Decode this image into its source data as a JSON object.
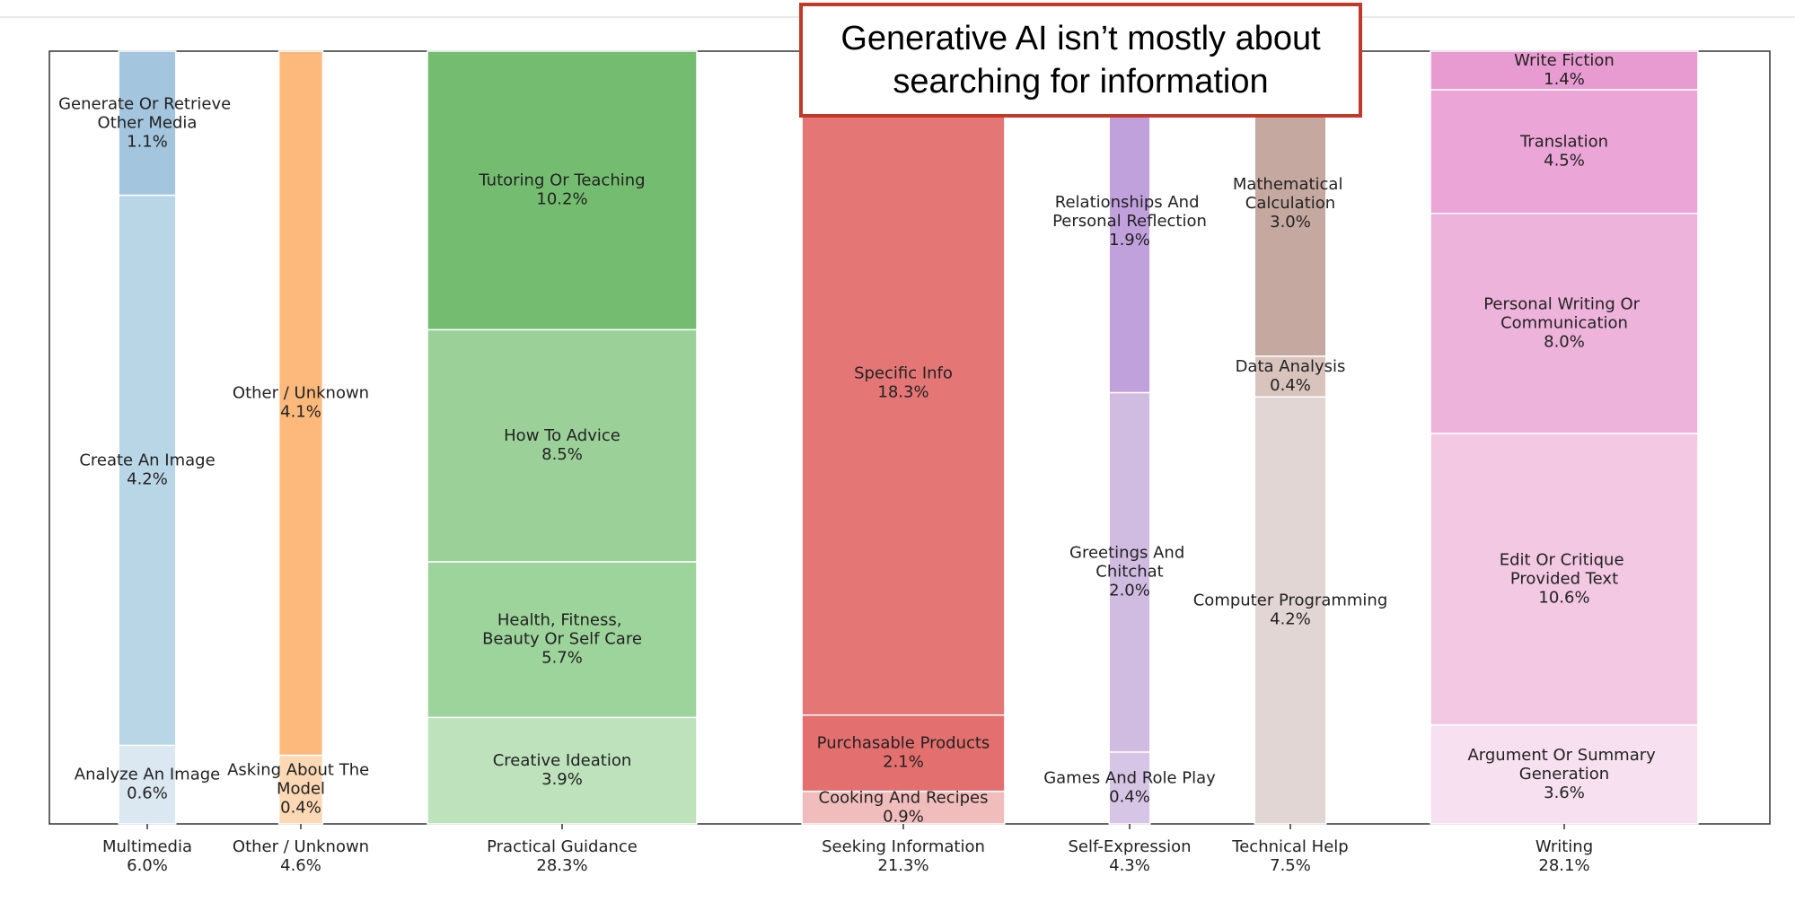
{
  "chart_data": {
    "type": "mosaic",
    "annotation": "Generative AI isn’t mostly about searching for information",
    "groups": [
      {
        "name": "Multimedia",
        "value": 6.0,
        "value_label": "6.0%",
        "segments": [
          {
            "name": "Analyze An Image",
            "value": 0.6,
            "value_label": "0.6%",
            "color": "#dbe7f1"
          },
          {
            "name": "Create An Image",
            "value": 4.2,
            "value_label": "4.2%",
            "color": "#b9d6e7"
          },
          {
            "name": "Generate Or Retrieve Other Media",
            "value": 1.1,
            "value_label": "1.1%",
            "color": "#a3c5de"
          }
        ]
      },
      {
        "name": "Other / Unknown",
        "value": 4.6,
        "value_label": "4.6%",
        "segments": [
          {
            "name": "Asking About The Model",
            "value": 0.4,
            "value_label": "0.4%",
            "color": "#fdd8b4"
          },
          {
            "name": "Other / Unknown",
            "value": 4.1,
            "value_label": "4.1%",
            "color": "#fdb97b"
          }
        ]
      },
      {
        "name": "Practical Guidance",
        "value": 28.3,
        "value_label": "28.3%",
        "segments": [
          {
            "name": "Creative Ideation",
            "value": 3.9,
            "value_label": "3.9%",
            "color": "#bde2bc"
          },
          {
            "name": "Health, Fitness, Beauty Or Self Care",
            "value": 5.7,
            "value_label": "5.7%",
            "color": "#9dd49b"
          },
          {
            "name": "How To Advice",
            "value": 8.5,
            "value_label": "8.5%",
            "color": "#9bd199"
          },
          {
            "name": "Tutoring Or Teaching",
            "value": 10.2,
            "value_label": "10.2%",
            "color": "#74bd70"
          }
        ]
      },
      {
        "name": "Seeking Information",
        "value": 21.3,
        "value_label": "21.3%",
        "segments": [
          {
            "name": "Cooking And Recipes",
            "value": 0.9,
            "value_label": "0.9%",
            "color": "#f1bdbc"
          },
          {
            "name": "Purchasable Products",
            "value": 2.1,
            "value_label": "2.1%",
            "color": "#e46f6f"
          },
          {
            "name": "Specific Info",
            "value": 18.3,
            "value_label": "18.3%",
            "color": "#e47676"
          }
        ]
      },
      {
        "name": "Self-Expression",
        "value": 4.3,
        "value_label": "4.3%",
        "segments": [
          {
            "name": "Games And Role Play",
            "value": 0.4,
            "value_label": "0.4%",
            "color": "#d6c5e5"
          },
          {
            "name": "Greetings And Chitchat",
            "value": 2.0,
            "value_label": "2.0%",
            "color": "#d1bce1"
          },
          {
            "name": "Relationships And Personal Reflection",
            "value": 1.9,
            "value_label": "1.9%",
            "color": "#c0a1dc"
          }
        ]
      },
      {
        "name": "Technical Help",
        "value": 7.5,
        "value_label": "7.5%",
        "segments": [
          {
            "name": "Computer Programming",
            "value": 4.2,
            "value_label": "4.2%",
            "color": "#e2d6d4"
          },
          {
            "name": "Data Analysis",
            "value": 0.4,
            "value_label": "0.4%",
            "color": "#d8c3bd"
          },
          {
            "name": "Mathematical Calculation",
            "value": 3.0,
            "value_label": "3.0%",
            "color": "#c5a9a0"
          }
        ]
      },
      {
        "name": "Writing",
        "value": 28.1,
        "value_label": "28.1%",
        "segments": [
          {
            "name": "Argument Or Summary Generation",
            "value": 3.6,
            "value_label": "3.6%",
            "color": "#f7e0ef"
          },
          {
            "name": "Edit Or Critique Provided Text",
            "value": 10.6,
            "value_label": "10.6%",
            "color": "#f2c8e2"
          },
          {
            "name": "Personal Writing Or Communication",
            "value": 8.0,
            "value_label": "8.0%",
            "color": "#edb3da"
          },
          {
            "name": "Translation",
            "value": 4.5,
            "value_label": "4.5%",
            "color": "#eba5d6"
          },
          {
            "name": "Write Fiction",
            "value": 1.4,
            "value_label": "1.4%",
            "color": "#e89bd0"
          }
        ]
      }
    ]
  }
}
